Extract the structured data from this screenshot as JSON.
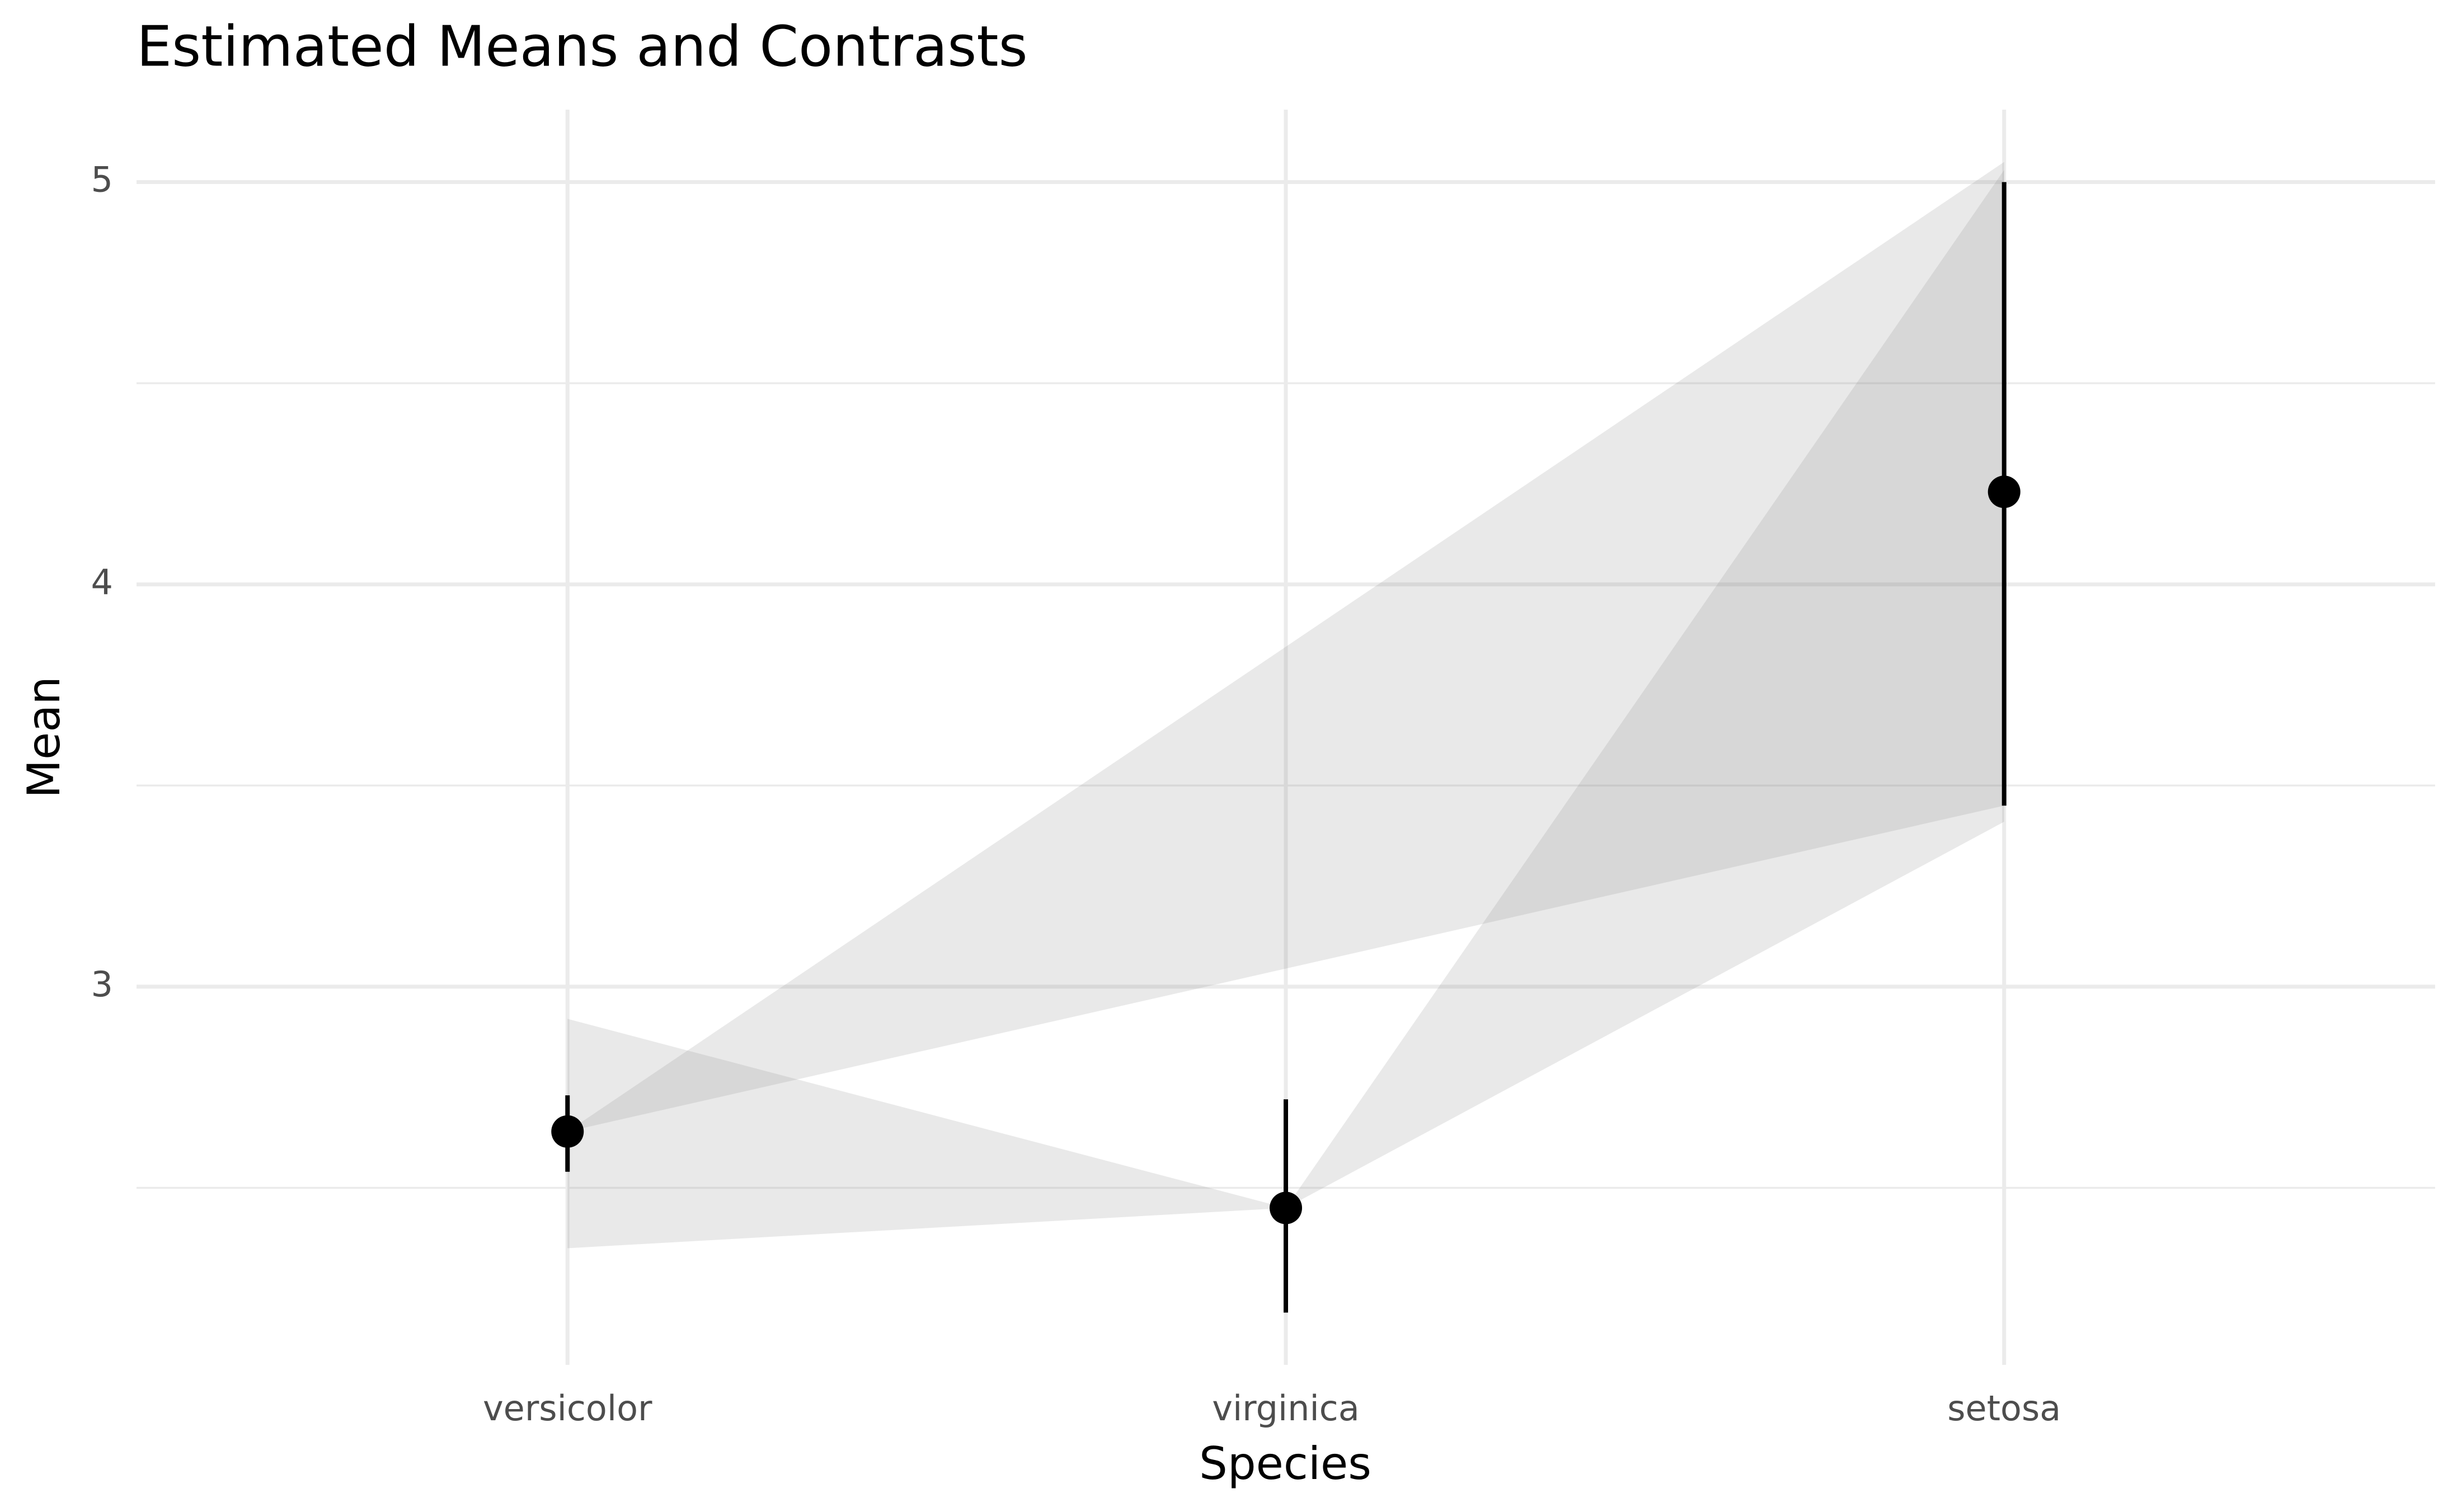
{
  "chart_data": {
    "type": "pointrange",
    "title": "Estimated Means and Contrasts",
    "x_label": "Species",
    "y_label": "Mean",
    "categories": [
      "versicolor",
      "virginica",
      "setosa"
    ],
    "values": [
      2.64,
      2.45,
      4.23
    ],
    "ci_low": [
      2.54,
      2.19,
      3.45
    ],
    "ci_high": [
      2.73,
      2.72,
      5.0
    ],
    "color": "#000000",
    "contrasts": [
      {
        "from": "versicolor",
        "to": "setosa",
        "level": 2.64,
        "low": 3.45,
        "high": 5.05
      },
      {
        "from": "virginica",
        "to": "setosa",
        "level": 2.45,
        "low": 3.41,
        "high": 5.03
      },
      {
        "from": "virginica",
        "to": "versicolor",
        "level": 2.45,
        "low": 2.35,
        "high": 2.92
      }
    ],
    "contrast_color": "#8c8c8c",
    "ylim": [
      2.06,
      5.18
    ],
    "yticks": [
      3,
      4,
      5
    ],
    "minor_yticks": [
      2.5,
      3.5,
      4.5
    ],
    "grid": true
  }
}
